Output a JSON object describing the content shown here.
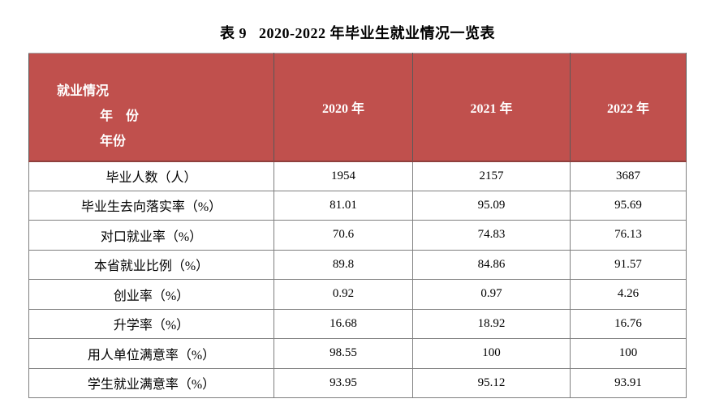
{
  "title": "表 9   2020-2022 年毕业生就业情况一览表",
  "table": {
    "header": {
      "corner_lines": [
        "就业情况",
        "年　份",
        "年份"
      ],
      "year_columns": [
        "2020 年",
        "2021 年",
        "2022 年"
      ],
      "background_color": "#c0504d",
      "text_color": "#ffffff",
      "grid_color": "#7f7f7f"
    },
    "rows": [
      {
        "label": "毕业人数（人）",
        "values": [
          "1954",
          "2157",
          "3687"
        ]
      },
      {
        "label": "毕业生去向落实率（%）",
        "values": [
          "81.01",
          "95.09",
          "95.69"
        ]
      },
      {
        "label": "对口就业率（%）",
        "values": [
          "70.6",
          "74.83",
          "76.13"
        ]
      },
      {
        "label": "本省就业比例（%）",
        "values": [
          "89.8",
          "84.86",
          "91.57"
        ]
      },
      {
        "label": "创业率（%）",
        "values": [
          "0.92",
          "0.97",
          "4.26"
        ]
      },
      {
        "label": "升学率（%）",
        "values": [
          "16.68",
          "18.92",
          "16.76"
        ]
      },
      {
        "label": "用人单位满意率（%）",
        "values": [
          "98.55",
          "100",
          "100"
        ]
      },
      {
        "label": "学生就业满意率（%）",
        "values": [
          "93.95",
          "95.12",
          "93.91"
        ]
      }
    ]
  },
  "chart_data": {
    "type": "table",
    "title": "表 9 2020-2022 年毕业生就业情况一览表",
    "categories": [
      "毕业人数（人）",
      "毕业生去向落实率（%）",
      "对口就业率（%）",
      "本省就业比例（%）",
      "创业率（%）",
      "升学率（%）",
      "用人单位满意率（%）",
      "学生就业满意率（%）"
    ],
    "series": [
      {
        "name": "2020 年",
        "values": [
          1954,
          81.01,
          70.6,
          89.8,
          0.92,
          16.68,
          98.55,
          93.95
        ]
      },
      {
        "name": "2021 年",
        "values": [
          2157,
          95.09,
          74.83,
          84.86,
          0.97,
          18.92,
          100,
          95.12
        ]
      },
      {
        "name": "2022 年",
        "values": [
          3687,
          95.69,
          76.13,
          91.57,
          4.26,
          16.76,
          100,
          93.91
        ]
      }
    ]
  }
}
